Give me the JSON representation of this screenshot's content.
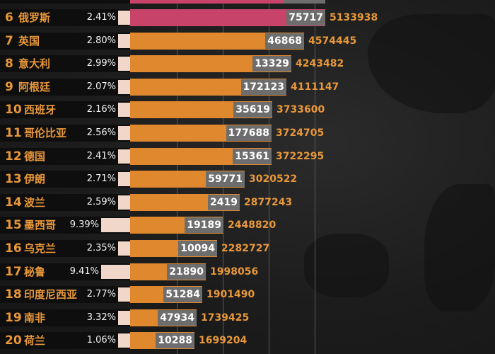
{
  "colors": {
    "highlight": "#c7436a",
    "bar": "#e0882e",
    "rank_text": "#e8983a",
    "label_bg": "#6d6d6d"
  },
  "chart_data": {
    "type": "bar",
    "orientation": "horizontal",
    "title": "",
    "xlabel": "",
    "ylabel": "",
    "xlim": [
      0,
      5133938
    ],
    "grid": true,
    "legend": "none",
    "rows": [
      {
        "rank": "6",
        "name": "俄罗斯",
        "ratio": "2.41%",
        "new": "75717",
        "total": "5133938",
        "value": 5133938,
        "highlight": true
      },
      {
        "rank": "7",
        "name": "英国",
        "ratio": "2.80%",
        "new": "46868",
        "total": "4574445",
        "value": 4574445
      },
      {
        "rank": "8",
        "name": "意大利",
        "ratio": "2.99%",
        "new": "13329",
        "total": "4243482",
        "value": 4243482
      },
      {
        "rank": "9",
        "name": "阿根廷",
        "ratio": "2.07%",
        "new": "172123",
        "total": "4111147",
        "value": 4111147
      },
      {
        "rank": "10",
        "name": "西班牙",
        "ratio": "2.16%",
        "new": "35619",
        "total": "3733600",
        "value": 3733600
      },
      {
        "rank": "11",
        "name": "哥伦比亚",
        "ratio": "2.56%",
        "new": "177688",
        "total": "3724705",
        "value": 3724705
      },
      {
        "rank": "12",
        "name": "德国",
        "ratio": "2.41%",
        "new": "15361",
        "total": "3722295",
        "value": 3722295
      },
      {
        "rank": "13",
        "name": "伊朗",
        "ratio": "2.71%",
        "new": "59771",
        "total": "3020522",
        "value": 3020522
      },
      {
        "rank": "14",
        "name": "波兰",
        "ratio": "2.59%",
        "new": "2419",
        "total": "2877243",
        "value": 2877243
      },
      {
        "rank": "15",
        "name": "墨西哥",
        "ratio": "9.39%",
        "new": "19189",
        "total": "2448820",
        "value": 2448820
      },
      {
        "rank": "16",
        "name": "乌克兰",
        "ratio": "2.35%",
        "new": "10094",
        "total": "2282727",
        "value": 2282727
      },
      {
        "rank": "17",
        "name": "秘鲁",
        "ratio": "9.41%",
        "new": "21890",
        "total": "1998056",
        "value": 1998056
      },
      {
        "rank": "18",
        "name": "印度尼西亚",
        "ratio": "2.77%",
        "new": "51284",
        "total": "1901490",
        "value": 1901490
      },
      {
        "rank": "19",
        "name": "南非",
        "ratio": "3.32%",
        "new": "47934",
        "total": "1739425",
        "value": 1739425
      },
      {
        "rank": "20",
        "name": "荷兰",
        "ratio": "1.06%",
        "new": "10288",
        "total": "1699204",
        "value": 1699204
      }
    ]
  }
}
